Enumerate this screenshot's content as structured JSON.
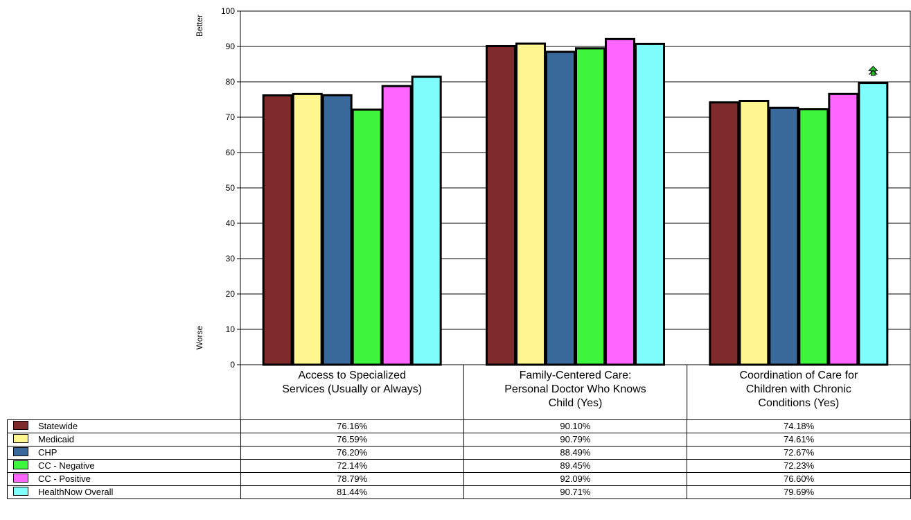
{
  "chart_data": {
    "type": "bar",
    "categories": [
      "Access to Specialized Services (Usually or Always)",
      "Family-Centered Care: Personal Doctor Who Knows Child (Yes)",
      "Coordination of Care for Children with Chronic Conditions (Yes)"
    ],
    "category_lines": [
      [
        "Access to Specialized",
        "Services (Usually or Always)"
      ],
      [
        "Family-Centered Care:",
        "Personal Doctor Who Knows",
        "Child (Yes)"
      ],
      [
        "Coordination of Care for",
        "Children with Chronic",
        "Conditions (Yes)"
      ]
    ],
    "series": [
      {
        "name": "Statewide",
        "color": "#7f2b2b",
        "values": [
          76.16,
          90.1,
          74.18
        ],
        "labels": [
          "76.16%",
          "90.10%",
          "74.18%"
        ]
      },
      {
        "name": "Medicaid",
        "color": "#fff68f",
        "values": [
          76.59,
          90.79,
          74.61
        ],
        "labels": [
          "76.59%",
          "90.79%",
          "74.61%"
        ]
      },
      {
        "name": "CHP",
        "color": "#3a6a9b",
        "values": [
          76.2,
          88.49,
          72.67
        ],
        "labels": [
          "76.20%",
          "88.49%",
          "72.67%"
        ]
      },
      {
        "name": "CC - Negative",
        "color": "#3cf53c",
        "values": [
          72.14,
          89.45,
          72.23
        ],
        "labels": [
          "72.14%",
          "89.45%",
          "72.23%"
        ]
      },
      {
        "name": "CC - Positive",
        "color": "#ff66ff",
        "values": [
          78.79,
          92.09,
          76.6
        ],
        "labels": [
          "78.79%",
          "92.09%",
          "76.60%"
        ]
      },
      {
        "name": "HealthNow Overall",
        "color": "#7ffcfc",
        "values": [
          81.44,
          90.71,
          79.69
        ],
        "labels": [
          "81.44%",
          "90.71%",
          "79.69%"
        ]
      }
    ],
    "ylim": [
      0,
      100
    ],
    "yticks": [
      0,
      10,
      20,
      30,
      40,
      50,
      60,
      70,
      80,
      90,
      100
    ],
    "y_top_label": "Better",
    "y_bottom_label": "Worse",
    "grid": true,
    "legend_placement": "table-bottom-left",
    "annotations": [
      {
        "type": "arrow-up-icon",
        "category_index": 2,
        "series_index": 5,
        "color": "#22bb22"
      }
    ]
  }
}
